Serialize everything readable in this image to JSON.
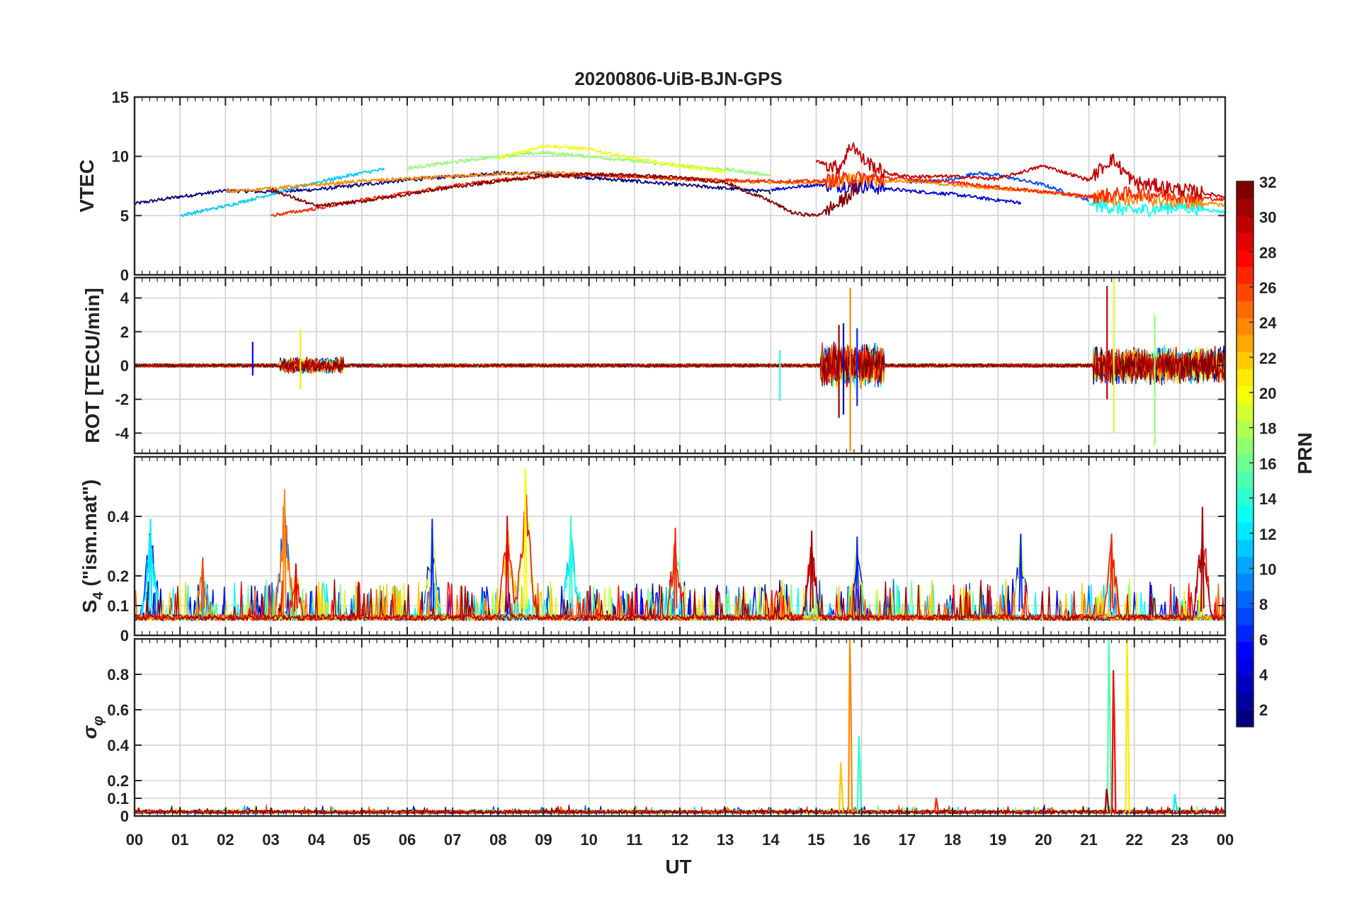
{
  "chart_data": {
    "type": "line",
    "title": "20200806-UiB-BJN-GPS",
    "xlabel": "UT",
    "x_tick_labels": [
      "00",
      "01",
      "02",
      "03",
      "04",
      "05",
      "06",
      "07",
      "08",
      "09",
      "10",
      "11",
      "12",
      "13",
      "14",
      "15",
      "16",
      "17",
      "18",
      "19",
      "20",
      "21",
      "22",
      "23",
      "00"
    ],
    "xlim": [
      0,
      24
    ],
    "colorbar": {
      "label": "PRN",
      "range": [
        1,
        32
      ],
      "ticks": [
        "2",
        "4",
        "6",
        "8",
        "10",
        "12",
        "14",
        "16",
        "18",
        "20",
        "22",
        "24",
        "26",
        "28",
        "30",
        "32"
      ],
      "colormap": "jet"
    },
    "panels": [
      {
        "id": "vtec",
        "ylabel": "VTEC",
        "ylim": [
          0,
          15
        ],
        "ytick_labels": [
          "0",
          "5",
          "10",
          "15"
        ],
        "series": [
          {
            "prn": 1,
            "x": [
              0,
              1,
              2,
              3,
              4,
              5,
              6,
              7,
              8,
              9,
              10,
              11,
              12,
              13,
              14
            ],
            "y": [
              6.0,
              6.6,
              7.1,
              7.0,
              7.2,
              7.6,
              8.0,
              8.3,
              8.6,
              8.5,
              8.2,
              7.9,
              7.6,
              7.3,
              7.0
            ]
          },
          {
            "prn": 4,
            "x": [
              14,
              15,
              16,
              17,
              18,
              19,
              19.5
            ],
            "y": [
              7.2,
              7.6,
              7.5,
              7.1,
              6.8,
              6.3,
              6.1
            ]
          },
          {
            "prn": 7,
            "x": [
              17,
              18,
              18.5,
              19,
              20,
              21
            ],
            "y": [
              7.8,
              8.0,
              8.6,
              8.4,
              7.6,
              6.3
            ]
          },
          {
            "prn": 11,
            "x": [
              1,
              2,
              3,
              4,
              5,
              5.5
            ],
            "y": [
              5.0,
              5.8,
              6.8,
              7.8,
              8.6,
              8.9
            ]
          },
          {
            "prn": 13,
            "x": [
              21,
              22,
              23,
              24
            ],
            "y": [
              6.0,
              5.4,
              5.8,
              5.3
            ]
          },
          {
            "prn": 17,
            "x": [
              6,
              7,
              8,
              9,
              10,
              11,
              12,
              13,
              14
            ],
            "y": [
              9.0,
              9.5,
              10.0,
              10.3,
              10.0,
              9.6,
              9.2,
              8.9,
              8.4
            ]
          },
          {
            "prn": 20,
            "x": [
              8,
              9,
              10,
              11,
              12,
              13
            ],
            "y": [
              9.8,
              10.9,
              10.6,
              9.8,
              9.2,
              8.7
            ]
          },
          {
            "prn": 24,
            "x": [
              2,
              3,
              4,
              5,
              6,
              7,
              8,
              9,
              10,
              11,
              12,
              13,
              14,
              15,
              16,
              17,
              18,
              19,
              20,
              21,
              22,
              23,
              24
            ],
            "y": [
              7.0,
              7.3,
              7.6,
              7.9,
              8.1,
              8.3,
              8.5,
              8.6,
              8.5,
              8.3,
              8.1,
              7.9,
              7.8,
              7.8,
              8.0,
              7.9,
              7.6,
              7.3,
              7.0,
              6.6,
              6.4,
              6.2,
              5.9
            ]
          },
          {
            "prn": 27,
            "x": [
              3,
              4,
              5,
              6,
              7,
              8,
              9,
              10,
              11,
              12,
              13,
              14,
              15,
              16,
              17,
              18,
              19,
              20,
              21,
              22,
              23,
              24
            ],
            "y": [
              5.0,
              5.6,
              6.3,
              6.9,
              7.5,
              8.0,
              8.3,
              8.4,
              8.3,
              8.1,
              8.0,
              7.9,
              7.9,
              8.2,
              8.1,
              7.8,
              7.4,
              7.0,
              6.6,
              6.9,
              6.7,
              6.3
            ]
          },
          {
            "prn": 30,
            "x": [
              15,
              15.5,
              15.8,
              16,
              16.5,
              17,
              18,
              19,
              20,
              21,
              21.5,
              22,
              23,
              24
            ],
            "y": [
              9.6,
              9.0,
              11.1,
              9.8,
              8.6,
              8.3,
              8.3,
              8.1,
              9.2,
              8.0,
              9.8,
              7.8,
              7.2,
              6.6
            ]
          },
          {
            "prn": 32,
            "x": [
              3,
              4,
              5,
              6,
              7,
              8,
              9,
              10,
              11,
              12,
              13,
              14,
              14.5,
              15,
              15.5,
              16
            ],
            "y": [
              7.2,
              5.8,
              6.2,
              6.8,
              7.4,
              7.9,
              8.3,
              8.5,
              8.4,
              8.2,
              7.8,
              6.2,
              5.2,
              5.0,
              6.0,
              7.6
            ]
          }
        ]
      },
      {
        "id": "rot",
        "ylabel": "ROT [TECU/min]",
        "ylim": [
          -5.2,
          5.2
        ],
        "ytick_labels": [
          "-4",
          "-2",
          "0",
          "2",
          "4"
        ],
        "spikes": [
          {
            "prn": 3,
            "x": 15.6,
            "ymin": -2.9,
            "ymax": 2.5
          },
          {
            "prn": 6,
            "x": 15.9,
            "ymin": -2.4,
            "ymax": 2.2
          },
          {
            "prn": 24,
            "x": 15.75,
            "ymin": -5.1,
            "ymax": 4.6
          },
          {
            "prn": 31,
            "x": 15.5,
            "ymin": -3.1,
            "ymax": 2.4
          },
          {
            "prn": 14,
            "x": 14.2,
            "ymin": -2.1,
            "ymax": 0.9
          },
          {
            "prn": 30,
            "x": 21.4,
            "ymin": -2.0,
            "ymax": 4.7
          },
          {
            "prn": 19,
            "x": 21.55,
            "ymin": -4.0,
            "ymax": 5.2
          },
          {
            "prn": 17,
            "x": 22.45,
            "ymin": -4.7,
            "ymax": 3.0
          },
          {
            "prn": 21,
            "x": 3.65,
            "ymin": -1.4,
            "ymax": 2.1
          },
          {
            "prn": 5,
            "x": 2.6,
            "ymin": -0.6,
            "ymax": 1.4
          }
        ],
        "bursts": [
          {
            "x0": 15.1,
            "x1": 16.5,
            "amplitude": 2.4
          },
          {
            "x0": 21.1,
            "x1": 24.0,
            "amplitude": 2.0
          },
          {
            "x0": 3.2,
            "x1": 4.6,
            "amplitude": 0.9
          }
        ]
      },
      {
        "id": "s4",
        "ylabel_base": "S",
        "ylabel_sub": "4",
        "ylabel_rest": " (\"ism.mat\")",
        "ylim": [
          0,
          0.6
        ],
        "ytick_labels": [
          "0",
          "0.1",
          "0.2",
          "0.4"
        ],
        "peaks": [
          {
            "prn": 12,
            "x": 0.35,
            "y": 0.39
          },
          {
            "prn": 26,
            "x": 1.5,
            "y": 0.26
          },
          {
            "prn": 24,
            "x": 3.3,
            "y": 0.49
          },
          {
            "prn": 29,
            "x": 3.55,
            "y": 0.24
          },
          {
            "prn": 6,
            "x": 6.55,
            "y": 0.39
          },
          {
            "prn": 29,
            "x": 8.2,
            "y": 0.4
          },
          {
            "prn": 20,
            "x": 8.6,
            "y": 0.56
          },
          {
            "prn": 14,
            "x": 9.6,
            "y": 0.4
          },
          {
            "prn": 27,
            "x": 11.9,
            "y": 0.36
          },
          {
            "prn": 31,
            "x": 14.9,
            "y": 0.35
          },
          {
            "prn": 6,
            "x": 15.9,
            "y": 0.33
          },
          {
            "prn": 6,
            "x": 19.5,
            "y": 0.34
          },
          {
            "prn": 27,
            "x": 21.5,
            "y": 0.34
          },
          {
            "prn": 31,
            "x": 23.5,
            "y": 0.43
          }
        ]
      },
      {
        "id": "sigphi",
        "ylabel_base": "σ",
        "ylabel_sub": "φ",
        "ylim": [
          0,
          1.0
        ],
        "ytick_labels": [
          "0",
          "0.1",
          "0.2",
          "0.4",
          "0.6",
          "0.8"
        ],
        "peaks": [
          {
            "prn": 24,
            "x": 15.75,
            "y": 1.0
          },
          {
            "prn": 14,
            "x": 15.95,
            "y": 0.45
          },
          {
            "prn": 22,
            "x": 15.55,
            "y": 0.3
          },
          {
            "prn": 15,
            "x": 21.45,
            "y": 1.0
          },
          {
            "prn": 28,
            "x": 21.55,
            "y": 0.82
          },
          {
            "prn": 31,
            "x": 21.4,
            "y": 0.15
          },
          {
            "prn": 21,
            "x": 21.85,
            "y": 1.0
          },
          {
            "prn": 27,
            "x": 17.65,
            "y": 0.1
          },
          {
            "prn": 12,
            "x": 22.9,
            "y": 0.12
          }
        ]
      }
    ]
  }
}
